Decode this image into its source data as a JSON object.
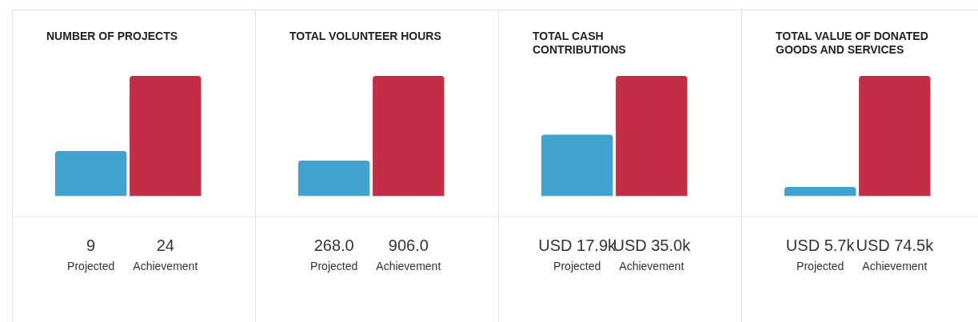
{
  "chart_data": [
    {
      "type": "bar",
      "title": "NUMBER OF PROJECTS",
      "categories": [
        "Projected",
        "Achievement"
      ],
      "values": [
        9,
        24
      ],
      "colors": [
        "#3fa2cf",
        "#c32d45"
      ],
      "value_labels": [
        "9",
        "24"
      ]
    },
    {
      "type": "bar",
      "title": "TOTAL VOLUNTEER HOURS",
      "categories": [
        "Projected",
        "Achievement"
      ],
      "values": [
        268.0,
        906.0
      ],
      "colors": [
        "#3fa2cf",
        "#c32d45"
      ],
      "value_labels": [
        "268.0",
        "906.0"
      ]
    },
    {
      "type": "bar",
      "title": "TOTAL CASH CONTRIBUTIONS",
      "categories": [
        "Projected",
        "Achievement"
      ],
      "values": [
        17900,
        35000
      ],
      "colors": [
        "#3fa2cf",
        "#c32d45"
      ],
      "value_labels": [
        "USD 17.9k",
        "USD 35.0k"
      ]
    },
    {
      "type": "bar",
      "title": "TOTAL VALUE OF DONATED GOODS AND SERVICES",
      "categories": [
        "Projected",
        "Achievement"
      ],
      "values": [
        5700,
        74500
      ],
      "colors": [
        "#3fa2cf",
        "#c32d45"
      ],
      "value_labels": [
        "USD 5.7k",
        "USD 74.5k"
      ]
    }
  ]
}
